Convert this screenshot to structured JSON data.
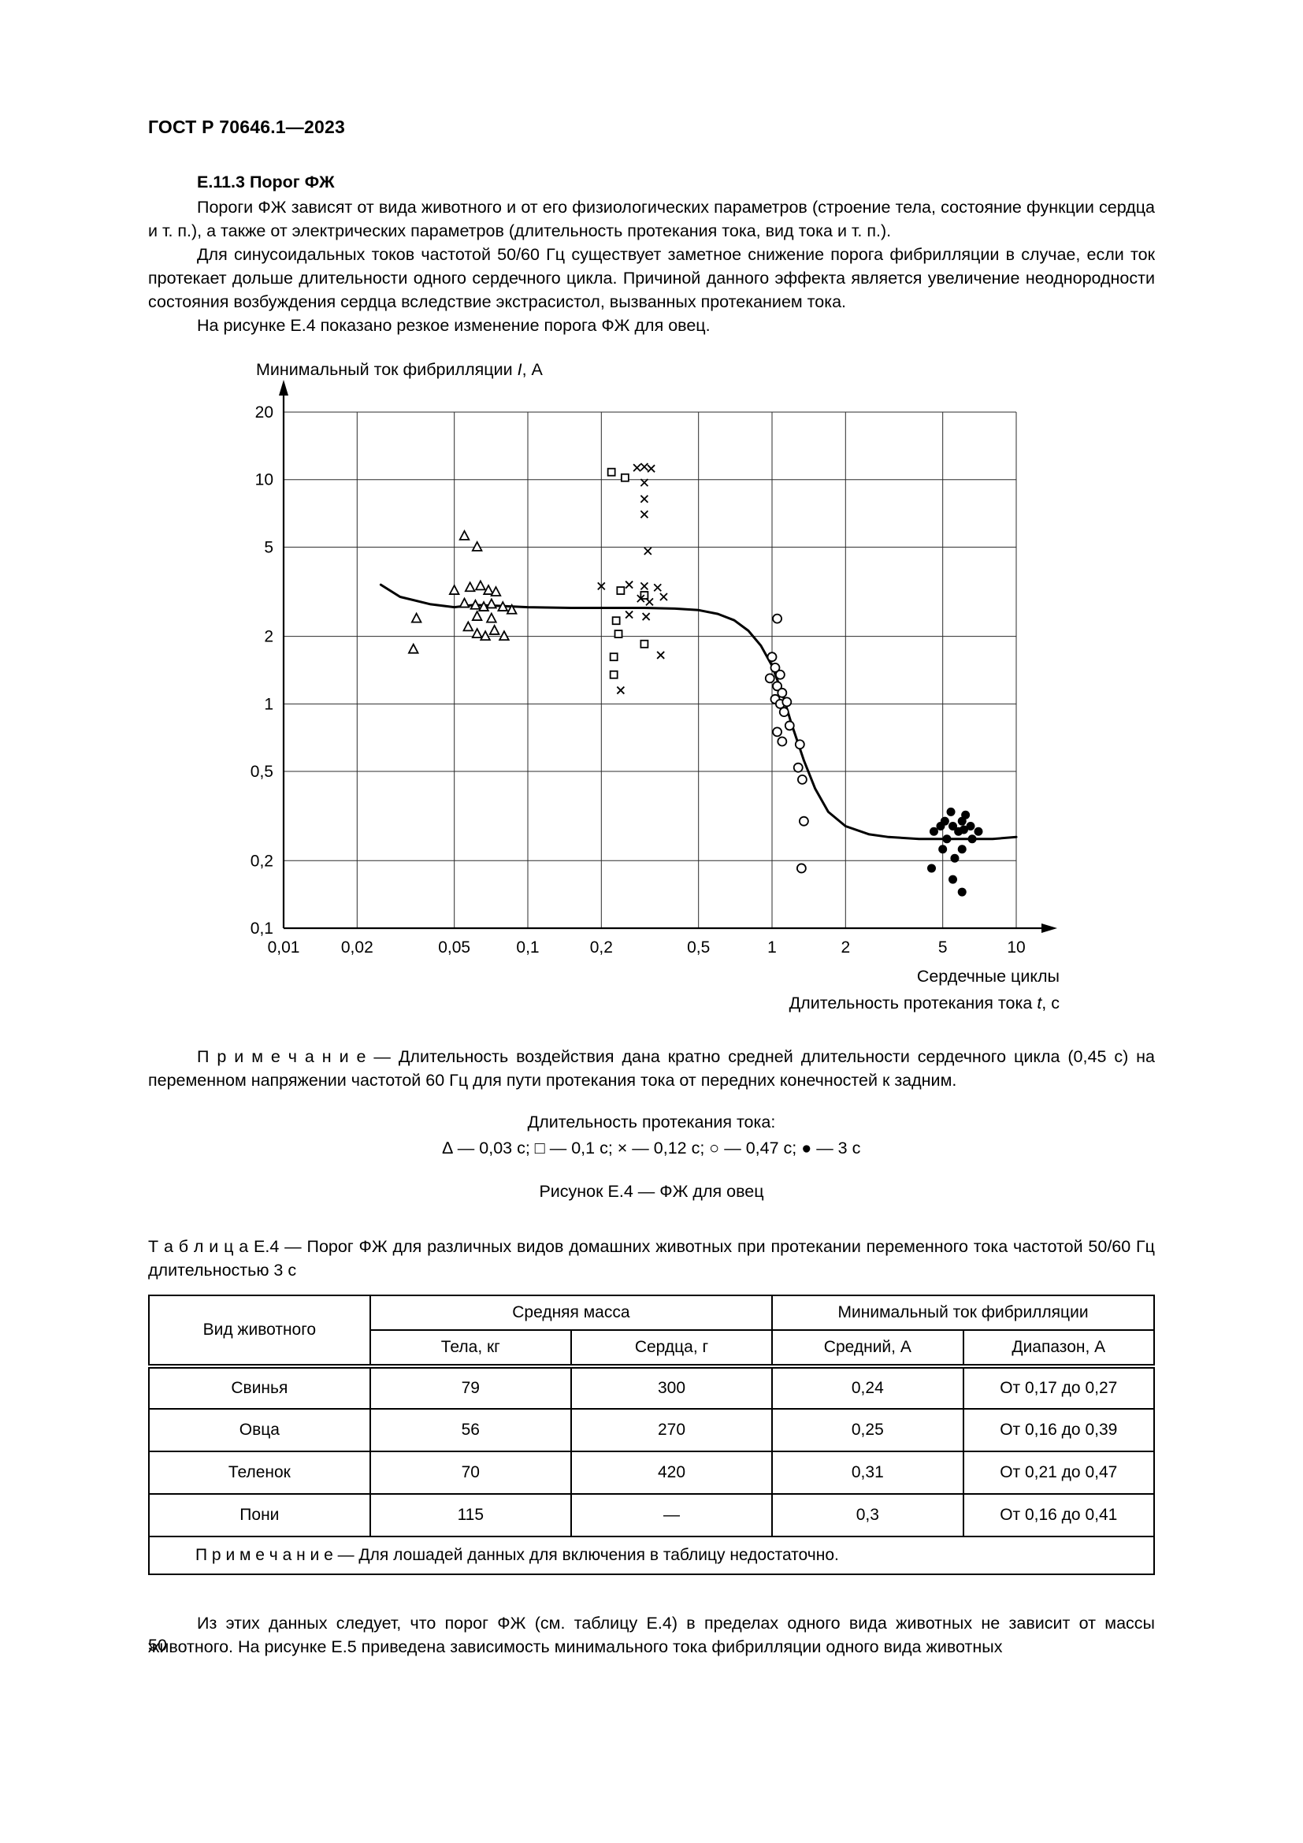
{
  "page": {
    "header": "ГОСТ Р 70646.1—2023",
    "page_number": "50"
  },
  "section": {
    "heading": "Е.11.3 Порог ФЖ",
    "para1": "Пороги ФЖ зависят от вида животного и от его физиологических параметров (строение тела, состояние функции сердца и т. п.), а также от электрических параметров (длительность протекания тока, вид тока и т. п.).",
    "para2": "Для синусоидальных токов частотой 50/60 Гц существует заметное снижение порога фибрилляции в случае, если ток протекает дольше длительности одного сердечного цикла. Причиной данного эффекта является увеличение неоднородности состояния возбуждения сердца вследствие экстрасистол, вызванных протеканием тока.",
    "para3": "На рисунке Е.4 показано резкое изменение порога ФЖ для овец."
  },
  "chart_data": {
    "type": "scatter",
    "log_x": true,
    "log_y": true,
    "xlim": [
      0.01,
      10
    ],
    "ylim": [
      0.1,
      20
    ],
    "ylabel_pre": "Минимальный ток фибрилляции",
    "ylabel_var": "I",
    "ylabel_post": ", А",
    "xlabel1": "Сердечные циклы",
    "xlabel2_pre": "Длительность протекания тока",
    "xlabel2_var": "t",
    "xlabel2_post": ", с",
    "x_ticks": [
      "0,01",
      "0,02",
      "0,05",
      "0,1",
      "0,2",
      "0,5",
      "1",
      "2",
      "5",
      "10"
    ],
    "x_tick_values": [
      0.01,
      0.02,
      0.05,
      0.1,
      0.2,
      0.5,
      1,
      2,
      5,
      10
    ],
    "y_ticks": [
      "20",
      "10",
      "5",
      "2",
      "1",
      "0,5",
      "0,2",
      "0,1"
    ],
    "y_tick_values": [
      20,
      10,
      5,
      2,
      1,
      0.5,
      0.2,
      0.1
    ],
    "series": [
      {
        "name": "0,03 с",
        "marker": "triangle",
        "points": [
          [
            0.055,
            5.6
          ],
          [
            0.062,
            5.0
          ],
          [
            0.035,
            2.4
          ],
          [
            0.034,
            1.75
          ],
          [
            0.05,
            3.2
          ],
          [
            0.058,
            3.3
          ],
          [
            0.064,
            3.35
          ],
          [
            0.069,
            3.2
          ],
          [
            0.074,
            3.15
          ],
          [
            0.055,
            2.8
          ],
          [
            0.061,
            2.75
          ],
          [
            0.066,
            2.7
          ],
          [
            0.071,
            2.78
          ],
          [
            0.079,
            2.7
          ],
          [
            0.086,
            2.62
          ],
          [
            0.057,
            2.2
          ],
          [
            0.062,
            2.05
          ],
          [
            0.067,
            2.0
          ],
          [
            0.073,
            2.12
          ],
          [
            0.08,
            2.0
          ],
          [
            0.062,
            2.45
          ],
          [
            0.071,
            2.4
          ]
        ]
      },
      {
        "name": "0,1 с",
        "marker": "square",
        "points": [
          [
            0.22,
            10.8
          ],
          [
            0.25,
            10.2
          ],
          [
            0.24,
            3.2
          ],
          [
            0.3,
            3.05
          ],
          [
            0.23,
            2.35
          ],
          [
            0.235,
            2.05
          ],
          [
            0.225,
            1.62
          ],
          [
            0.3,
            1.85
          ],
          [
            0.225,
            1.35
          ]
        ]
      },
      {
        "name": "0,12 с",
        "marker": "cross",
        "points": [
          [
            0.28,
            11.3
          ],
          [
            0.3,
            11.4
          ],
          [
            0.32,
            11.2
          ],
          [
            0.3,
            9.7
          ],
          [
            0.3,
            8.2
          ],
          [
            0.3,
            7.0
          ],
          [
            0.31,
            4.8
          ],
          [
            0.2,
            3.35
          ],
          [
            0.26,
            3.4
          ],
          [
            0.3,
            3.35
          ],
          [
            0.34,
            3.3
          ],
          [
            0.29,
            2.95
          ],
          [
            0.315,
            2.85
          ],
          [
            0.36,
            3.0
          ],
          [
            0.26,
            2.5
          ],
          [
            0.305,
            2.45
          ],
          [
            0.24,
            1.15
          ],
          [
            0.35,
            1.65
          ]
        ]
      },
      {
        "name": "0,47 с",
        "marker": "circle-open",
        "points": [
          [
            1.05,
            2.4
          ],
          [
            1.0,
            1.62
          ],
          [
            1.03,
            1.45
          ],
          [
            0.98,
            1.3
          ],
          [
            1.08,
            1.35
          ],
          [
            1.05,
            1.2
          ],
          [
            1.1,
            1.12
          ],
          [
            1.03,
            1.05
          ],
          [
            1.08,
            1.0
          ],
          [
            1.15,
            1.02
          ],
          [
            1.12,
            0.92
          ],
          [
            1.05,
            0.75
          ],
          [
            1.18,
            0.8
          ],
          [
            1.1,
            0.68
          ],
          [
            1.3,
            0.66
          ],
          [
            1.28,
            0.52
          ],
          [
            1.33,
            0.46
          ],
          [
            1.35,
            0.3
          ],
          [
            1.32,
            0.185
          ]
        ]
      },
      {
        "name": "3 с",
        "marker": "circle-filled",
        "points": [
          [
            4.6,
            0.27
          ],
          [
            4.9,
            0.285
          ],
          [
            5.1,
            0.3
          ],
          [
            5.4,
            0.33
          ],
          [
            5.5,
            0.285
          ],
          [
            5.8,
            0.27
          ],
          [
            6.0,
            0.3
          ],
          [
            6.1,
            0.275
          ],
          [
            6.5,
            0.285
          ],
          [
            7.0,
            0.27
          ],
          [
            5.0,
            0.225
          ],
          [
            5.6,
            0.205
          ],
          [
            6.0,
            0.225
          ],
          [
            6.6,
            0.25
          ],
          [
            5.5,
            0.165
          ],
          [
            6.0,
            0.145
          ],
          [
            4.5,
            0.185
          ],
          [
            5.2,
            0.25
          ],
          [
            6.2,
            0.32
          ]
        ]
      }
    ],
    "curve": [
      [
        0.025,
        3.4
      ],
      [
        0.03,
        3.0
      ],
      [
        0.04,
        2.78
      ],
      [
        0.05,
        2.7
      ],
      [
        0.06,
        2.76
      ],
      [
        0.08,
        2.73
      ],
      [
        0.1,
        2.7
      ],
      [
        0.15,
        2.68
      ],
      [
        0.2,
        2.68
      ],
      [
        0.3,
        2.68
      ],
      [
        0.4,
        2.66
      ],
      [
        0.5,
        2.62
      ],
      [
        0.6,
        2.52
      ],
      [
        0.7,
        2.36
      ],
      [
        0.8,
        2.12
      ],
      [
        0.9,
        1.82
      ],
      [
        1.0,
        1.48
      ],
      [
        1.1,
        1.12
      ],
      [
        1.2,
        0.82
      ],
      [
        1.35,
        0.56
      ],
      [
        1.5,
        0.42
      ],
      [
        1.7,
        0.33
      ],
      [
        2.0,
        0.285
      ],
      [
        2.5,
        0.262
      ],
      [
        3.0,
        0.255
      ],
      [
        4.0,
        0.25
      ],
      [
        6.0,
        0.25
      ],
      [
        8.0,
        0.25
      ],
      [
        10.0,
        0.255
      ]
    ]
  },
  "figure": {
    "note": "П р и м е ч а н и е   — Длительность воздействия дана кратно средней длительности сердечного цикла (0,45 с) на переменном напряжении частотой 60 Гц для пути протекания тока от передних конечностей к задним.",
    "legend_title": "Длительность протекания тока:",
    "legend_line": "∆ — 0,03 с; □ — 0,1 с; × — 0,12 с; ○ — 0,47 с; ● — 3 с",
    "caption": "Рисунок Е.4 — ФЖ для овец"
  },
  "table": {
    "caption": "Т а б л и ц а   Е.4 — Порог ФЖ для различных видов домашних животных при протекании переменного тока частотой 50/60 Гц длительностью 3 с",
    "col_animal": "Вид животного",
    "group_mass": "Средняя масса",
    "group_current": "Минимальный ток фибрилляции",
    "sub_body": "Тела, кг",
    "sub_heart": "Сердца, г",
    "sub_avg": "Средний, А",
    "sub_range": "Диапазон, А",
    "rows": [
      [
        "Свинья",
        "79",
        "300",
        "0,24",
        "От 0,17 до 0,27"
      ],
      [
        "Овца",
        "56",
        "270",
        "0,25",
        "От 0,16 до 0,39"
      ],
      [
        "Теленок",
        "70",
        "420",
        "0,31",
        "От 0,21 до 0,47"
      ],
      [
        "Пони",
        "115",
        "—",
        "0,3",
        "От 0,16 до 0,41"
      ]
    ],
    "note": "П р и м е ч а н и е   — Для лошадей данных для включения в таблицу недостаточно."
  },
  "closing": "Из этих данных следует, что порог ФЖ (см. таблицу Е.4) в пределах одного вида животных не зависит от массы животного. На рисунке Е.5 приведена зависимость минимального тока фибрилляции одного вида животных"
}
